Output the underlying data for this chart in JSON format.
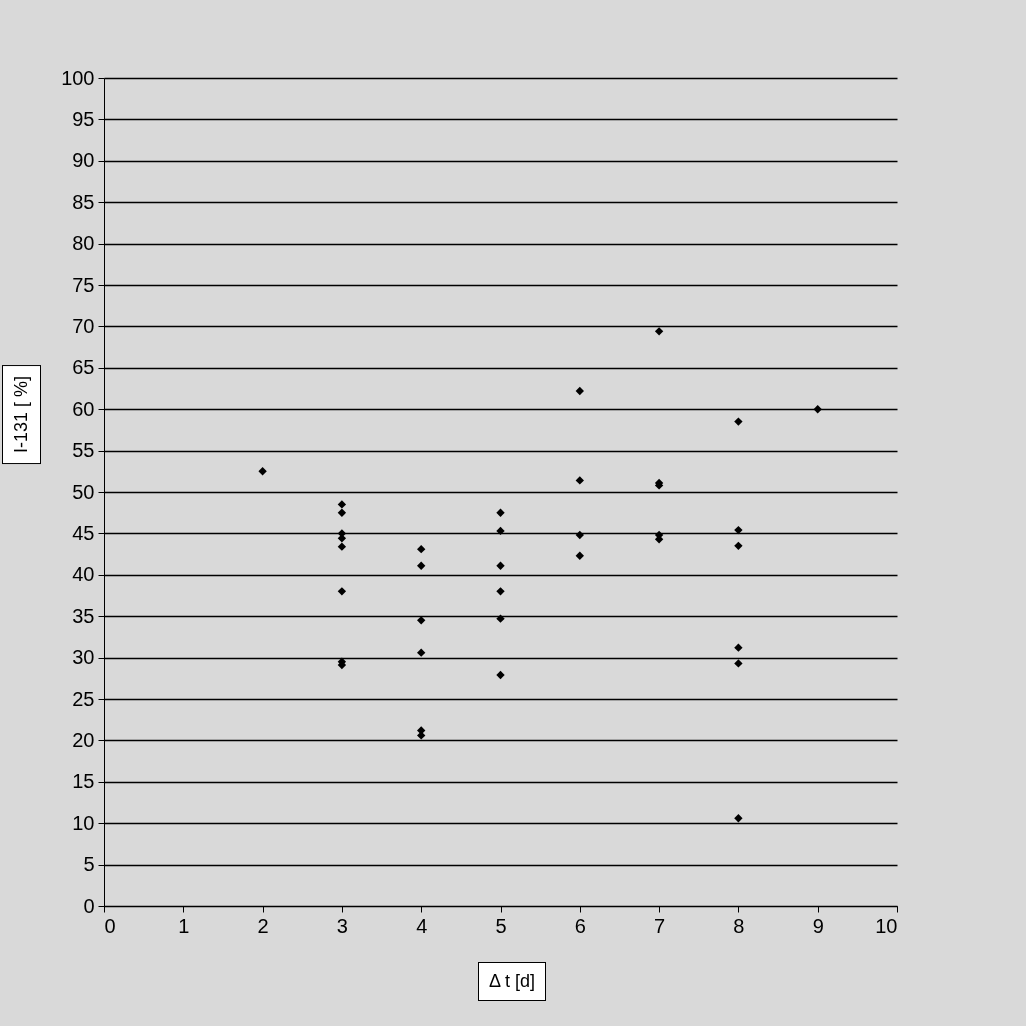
{
  "chart_data": {
    "type": "scatter",
    "xlabel": "Δ t [d]",
    "ylabel": "I-131 [ %]",
    "x": [
      2,
      3,
      3,
      3,
      3,
      3,
      3,
      3,
      3,
      4,
      4,
      4,
      4,
      4,
      4,
      5,
      5,
      5,
      5,
      5,
      5,
      6,
      6,
      6,
      6,
      7,
      7,
      7,
      7,
      7,
      8,
      8,
      8,
      8,
      8,
      8,
      9
    ],
    "series": [
      {
        "color": "#000000",
        "values": [
          52.5,
          48.5,
          47.5,
          45.0,
          44.4,
          43.4,
          38.0,
          29.5,
          29.1,
          43.1,
          41.1,
          34.5,
          30.6,
          21.2,
          20.6,
          47.5,
          45.3,
          41.1,
          38.0,
          34.7,
          27.9,
          62.2,
          51.4,
          44.8,
          42.3,
          69.4,
          51.1,
          50.8,
          44.8,
          44.3,
          58.5,
          45.4,
          43.5,
          31.2,
          29.3,
          10.6,
          60.0
        ]
      }
    ],
    "xlim": [
      0,
      10
    ],
    "xticks": [
      0,
      1,
      2,
      3,
      4,
      5,
      6,
      7,
      8,
      9,
      10
    ],
    "ylim": [
      0,
      100
    ],
    "yticks": [
      0,
      5,
      10,
      15,
      20,
      25,
      30,
      35,
      40,
      45,
      50,
      55,
      60,
      65,
      70,
      75,
      80,
      85,
      90,
      95,
      100
    ],
    "grid": "y",
    "marker": "diamond"
  }
}
